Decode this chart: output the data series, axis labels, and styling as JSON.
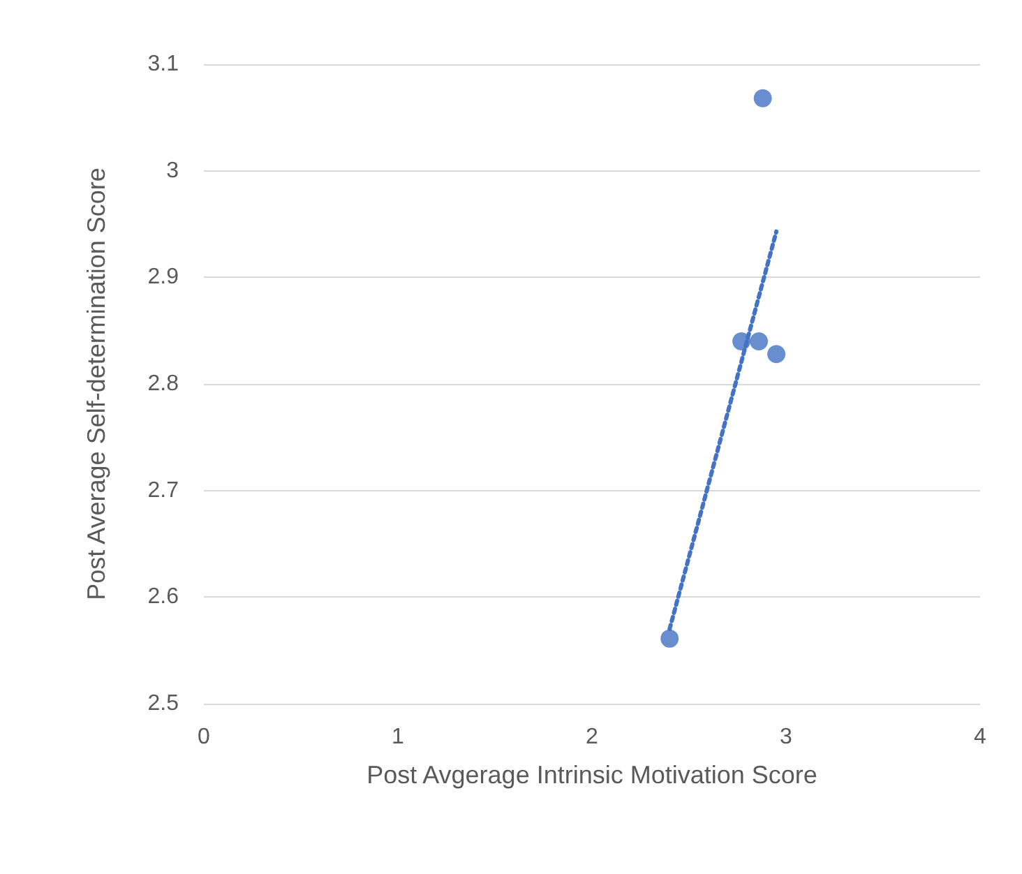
{
  "chart_data": {
    "type": "scatter",
    "xlabel": "Post Avgerage Intrinsic Motivation Score",
    "ylabel": "Post Average Self-determination Score",
    "series": [
      {
        "color": "#4472c4",
        "x": [
          2.88,
          2.77,
          2.86,
          2.95,
          2.4
        ],
        "values": [
          3.068,
          2.84,
          2.84,
          2.828,
          2.561
        ],
        "marker": "circle"
      },
      {
        "type": "line",
        "color": "#4472c4",
        "x": [
          2.4,
          2.95
        ],
        "values": [
          2.57,
          2.943
        ],
        "line_style": "dotted",
        "marker": "none"
      }
    ],
    "xlim": [
      0,
      4
    ],
    "xticks": [
      0,
      1,
      2,
      3,
      4
    ],
    "ylim": [
      2.5,
      3.1
    ],
    "yticks": [
      2.5,
      2.6,
      2.7,
      2.8,
      2.9,
      3,
      3.1
    ],
    "grid": "y"
  }
}
